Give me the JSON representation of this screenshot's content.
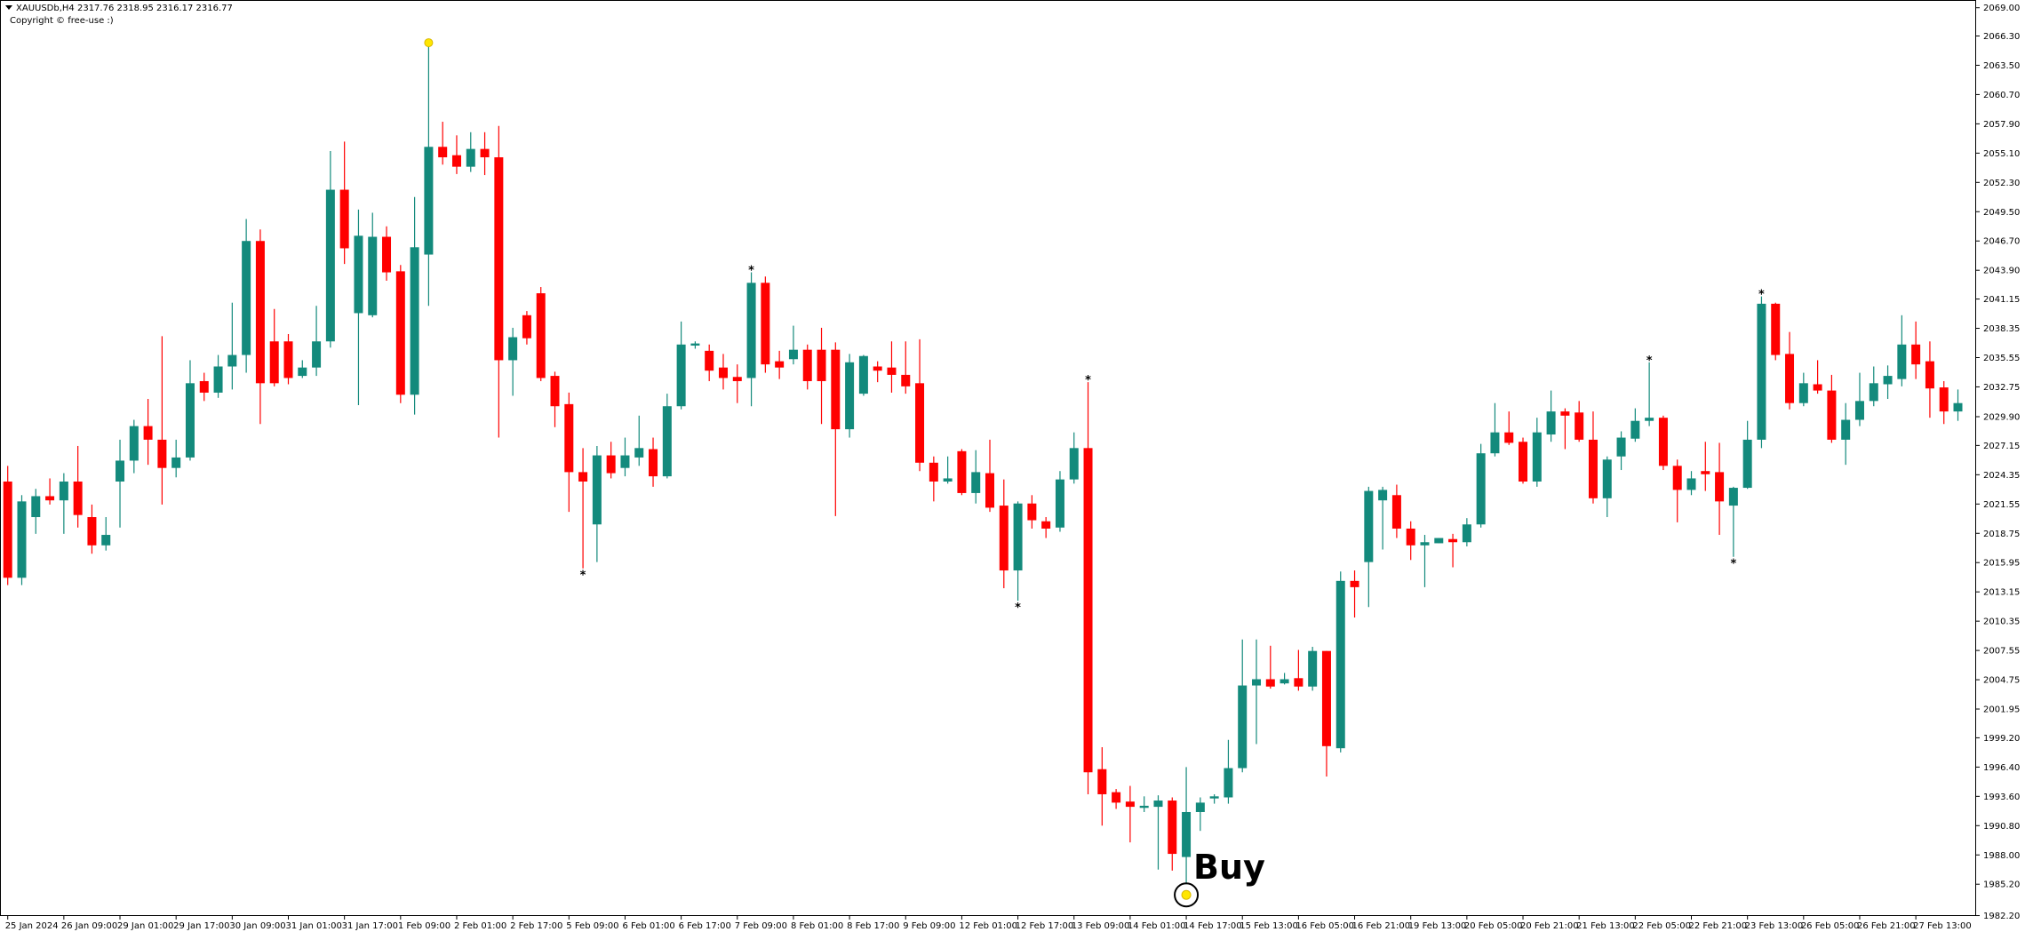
{
  "chart_data": {
    "type": "candlestick",
    "header": "XAUUSDb,H4  2317.76 2318.95 2316.17 2316.77",
    "copyright": "Copyright © free-use :)",
    "up_color": "#138a7c",
    "down_color": "#ff0000",
    "categories": [
      "25 Jan 2024",
      null,
      null,
      null,
      "26 Jan 09:00",
      null,
      null,
      null,
      "29 Jan 01:00",
      null,
      null,
      null,
      "29 Jan 17:00",
      null,
      null,
      null,
      "30 Jan 09:00",
      null,
      null,
      null,
      "31 Jan 01:00",
      null,
      null,
      null,
      "31 Jan 17:00",
      null,
      null,
      null,
      "1 Feb 09:00",
      null,
      null,
      null,
      "2 Feb 01:00",
      null,
      null,
      null,
      "2 Feb 17:00",
      null,
      null,
      null,
      "5 Feb 09:00",
      null,
      null,
      null,
      "6 Feb 01:00",
      null,
      null,
      null,
      "6 Feb 17:00",
      null,
      null,
      null,
      "7 Feb 09:00",
      null,
      null,
      null,
      "8 Feb 01:00",
      null,
      null,
      null,
      "8 Feb 17:00",
      null,
      null,
      null,
      "9 Feb 09:00",
      null,
      null,
      null,
      "12 Feb 01:00",
      null,
      null,
      null,
      "12 Feb 17:00",
      null,
      null,
      null,
      "13 Feb 09:00",
      null,
      null,
      null,
      "14 Feb 01:00",
      null,
      null,
      null,
      "14 Feb 17:00",
      null,
      null,
      null,
      "15 Feb 13:00",
      null,
      null,
      null,
      "16 Feb 05:00",
      null,
      null,
      null,
      "16 Feb 21:00",
      null,
      null,
      null,
      "19 Feb 13:00",
      null,
      null,
      null,
      "20 Feb 05:00",
      null,
      null,
      null,
      "20 Feb 21:00",
      null,
      null,
      null,
      "21 Feb 13:00",
      null,
      null,
      null,
      "22 Feb 05:00",
      null,
      null,
      null,
      "22 Feb 21:00",
      null,
      null,
      null,
      "23 Feb 13:00",
      null,
      null,
      null,
      "26 Feb 05:00",
      null,
      null,
      null,
      "26 Feb 21:00",
      null,
      null,
      null,
      "27 Feb 13:00",
      null,
      null,
      null
    ],
    "ohlc": {
      "open": [
        2023.7,
        2014.5,
        2020.3,
        2022.3,
        2021.9,
        2023.7,
        2020.3,
        2017.6,
        2023.7,
        2025.7,
        2029.0,
        2027.7,
        2025.0,
        2026.0,
        2033.3,
        2032.2,
        2034.7,
        2035.8,
        2046.7,
        2037.1,
        2037.1,
        2033.8,
        2034.6,
        2037.1,
        2051.6,
        2039.8,
        2039.6,
        2047.1,
        2043.8,
        2032.0,
        2045.4,
        2055.7,
        2054.9,
        2053.8,
        2055.5,
        2054.7,
        2035.3,
        2039.6,
        2041.7,
        2033.8,
        2031.1,
        2024.6,
        2019.6,
        2026.2,
        2025.0,
        2026.0,
        2026.8,
        2024.2,
        2030.9,
        2036.7,
        2036.2,
        2034.6,
        2033.7,
        2033.6,
        2042.7,
        2035.2,
        2035.4,
        2036.3,
        2036.3,
        2036.3,
        2028.7,
        2032.1,
        2034.7,
        2034.6,
        2033.9,
        2033.1,
        2025.5,
        2023.7,
        2026.6,
        2022.6,
        2024.5,
        2021.4,
        2015.2,
        2021.6,
        2019.9,
        2019.3,
        2023.9,
        2026.9,
        1996.2,
        1994.0,
        1993.1,
        1992.5,
        1992.6,
        1993.2,
        1987.8,
        1992.1,
        1993.4,
        1993.5,
        1996.3,
        2004.2,
        2004.8,
        2004.4,
        2004.9,
        2004.1,
        2007.5,
        1998.2,
        2014.2,
        2016.0,
        2021.9,
        2022.4,
        2019.2,
        2017.6,
        2017.8,
        2018.2,
        2017.9,
        2019.6,
        2026.4,
        2028.4,
        2027.5,
        2023.7,
        2028.2,
        2030.4,
        2030.3,
        2027.7,
        2022.1,
        2026.1,
        2027.8,
        2029.5,
        2029.8,
        2025.2,
        2022.9,
        2024.7,
        2024.6,
        2021.4,
        2023.1,
        2027.7,
        2040.7,
        2035.9,
        2031.2,
        2033.0,
        2032.4,
        2027.7,
        2029.6,
        2031.4,
        2033.0,
        2033.5,
        2036.8,
        2035.2,
        2032.7,
        2030.4
      ],
      "high": [
        2025.2,
        2022.4,
        2023.0,
        2024.0,
        2024.5,
        2027.1,
        2021.5,
        2020.3,
        2027.7,
        2029.6,
        2031.6,
        2037.6,
        2027.7,
        2035.3,
        2034.1,
        2035.8,
        2040.8,
        2048.8,
        2047.8,
        2040.2,
        2037.8,
        2035.3,
        2040.5,
        2055.3,
        2056.2,
        2049.7,
        2049.4,
        2048.1,
        2044.4,
        2050.9,
        2065.4,
        2058.1,
        2056.8,
        2057.1,
        2057.1,
        2057.7,
        2038.4,
        2040.0,
        2042.3,
        2034.2,
        2032.2,
        2026.9,
        2027.1,
        2027.5,
        2027.9,
        2030.0,
        2027.9,
        2032.1,
        2039.0,
        2037.1,
        2036.8,
        2035.9,
        2034.9,
        2043.7,
        2043.3,
        2036.2,
        2038.6,
        2036.8,
        2038.4,
        2037.0,
        2035.9,
        2035.8,
        2035.2,
        2037.1,
        2037.1,
        2037.3,
        2026.1,
        2026.1,
        2026.8,
        2026.7,
        2027.7,
        2023.9,
        2021.8,
        2022.4,
        2020.3,
        2024.7,
        2028.4,
        2033.2,
        1998.3,
        1994.3,
        1994.6,
        1993.6,
        1993.7,
        1993.5,
        1996.4,
        1993.5,
        1993.8,
        1999.0,
        2008.6,
        2008.6,
        2008.0,
        2005.4,
        2007.6,
        2007.9,
        2007.5,
        2015.1,
        2015.2,
        2023.2,
        2023.2,
        2023.4,
        2019.9,
        2018.6,
        2018.3,
        2018.7,
        2020.2,
        2027.3,
        2031.2,
        2030.4,
        2027.9,
        2029.8,
        2032.4,
        2030.7,
        2031.4,
        2030.4,
        2026.1,
        2028.5,
        2030.7,
        2035.1,
        2030.0,
        2025.8,
        2024.7,
        2027.5,
        2027.4,
        2023.2,
        2029.5,
        2041.4,
        2040.8,
        2038.0,
        2034.1,
        2035.3,
        2033.9,
        2031.2,
        2034.1,
        2034.7,
        2034.8,
        2039.6,
        2039.0,
        2037.1,
        2033.3,
        2032.5
      ],
      "low": [
        2013.8,
        2013.8,
        2018.7,
        2021.5,
        2018.7,
        2019.3,
        2016.8,
        2017.1,
        2019.3,
        2024.5,
        2025.3,
        2021.5,
        2024.1,
        2025.7,
        2031.4,
        2031.7,
        2032.5,
        2034.1,
        2029.2,
        2032.8,
        2033.0,
        2033.6,
        2033.8,
        2036.5,
        2044.5,
        2031.0,
        2039.4,
        2042.9,
        2031.2,
        2030.1,
        2040.5,
        2054.0,
        2053.1,
        2053.3,
        2053.0,
        2027.9,
        2031.9,
        2036.8,
        2033.3,
        2028.9,
        2020.8,
        2015.4,
        2016.0,
        2024.0,
        2024.2,
        2025.2,
        2023.2,
        2024.0,
        2030.6,
        2036.4,
        2033.3,
        2032.5,
        2031.2,
        2030.9,
        2034.1,
        2033.5,
        2034.9,
        2032.5,
        2029.2,
        2020.4,
        2027.9,
        2031.9,
        2033.2,
        2032.2,
        2032.1,
        2024.7,
        2021.8,
        2023.5,
        2022.4,
        2021.6,
        2020.8,
        2013.5,
        2012.3,
        2019.2,
        2018.3,
        2018.9,
        2023.5,
        1993.8,
        1990.8,
        1992.4,
        1989.2,
        1992.1,
        1986.6,
        1986.5,
        1985.2,
        1990.3,
        1992.9,
        1992.9,
        1995.9,
        1998.6,
        2003.9,
        2004.3,
        2003.7,
        2003.7,
        1995.5,
        1997.8,
        2010.7,
        2011.7,
        2017.2,
        2018.3,
        2016.2,
        2013.6,
        2017.8,
        2015.5,
        2017.5,
        2019.3,
        2026.1,
        2027.2,
        2023.5,
        2023.2,
        2027.5,
        2026.8,
        2027.5,
        2021.6,
        2020.3,
        2024.8,
        2027.5,
        2029.0,
        2024.8,
        2019.8,
        2022.4,
        2022.8,
        2018.6,
        2016.5,
        2023.0,
        2026.9,
        2035.3,
        2030.6,
        2030.9,
        2032.1,
        2027.4,
        2025.3,
        2029.0,
        2030.9,
        2031.6,
        2032.8,
        2033.5,
        2029.8,
        2029.2,
        2029.5
      ],
      "close": [
        2014.5,
        2021.8,
        2022.3,
        2021.9,
        2023.7,
        2020.5,
        2017.6,
        2018.6,
        2025.7,
        2029.0,
        2027.7,
        2025.0,
        2026.0,
        2033.1,
        2032.2,
        2034.7,
        2035.8,
        2046.7,
        2033.1,
        2033.1,
        2033.6,
        2034.6,
        2037.1,
        2051.6,
        2046.0,
        2047.2,
        2047.1,
        2043.7,
        2032.0,
        2046.1,
        2055.7,
        2054.7,
        2053.8,
        2055.5,
        2054.7,
        2035.3,
        2037.5,
        2037.4,
        2033.6,
        2030.9,
        2024.6,
        2023.7,
        2026.2,
        2024.5,
        2026.2,
        2026.9,
        2024.2,
        2030.9,
        2036.8,
        2036.9,
        2034.3,
        2033.6,
        2033.3,
        2042.7,
        2034.9,
        2034.6,
        2036.3,
        2033.3,
        2033.3,
        2028.7,
        2035.1,
        2035.7,
        2034.3,
        2033.9,
        2032.8,
        2025.5,
        2023.7,
        2024.0,
        2022.6,
        2024.6,
        2021.2,
        2015.2,
        2021.6,
        2020.0,
        2019.2,
        2023.9,
        2026.9,
        1995.9,
        1993.8,
        1993.0,
        1992.6,
        1992.7,
        1993.2,
        1988.1,
        1992.1,
        1993.0,
        1993.6,
        1996.3,
        2004.2,
        2004.8,
        2004.1,
        2004.8,
        2004.1,
        2007.5,
        1998.4,
        2014.2,
        2013.6,
        2022.8,
        2022.9,
        2019.2,
        2017.6,
        2017.9,
        2018.3,
        2017.9,
        2019.6,
        2026.4,
        2028.4,
        2027.4,
        2023.7,
        2028.4,
        2030.4,
        2030.0,
        2027.7,
        2022.1,
        2025.8,
        2027.9,
        2029.5,
        2029.8,
        2025.2,
        2022.9,
        2024.0,
        2024.4,
        2021.8,
        2023.1,
        2027.7,
        2040.7,
        2035.8,
        2031.2,
        2033.1,
        2032.4,
        2027.7,
        2029.6,
        2031.4,
        2033.1,
        2033.8,
        2036.8,
        2034.9,
        2032.6,
        2030.4,
        2031.2
      ]
    },
    "ylim": [
      1982.16,
      2069.74
    ],
    "yticks": [
      {
        "value": 2069.0,
        "label": "2069.00"
      },
      {
        "value": 2066.3,
        "label": "2066.30"
      },
      {
        "value": 2063.5,
        "label": "2063.50"
      },
      {
        "value": 2060.7,
        "label": "2060.70"
      },
      {
        "value": 2057.9,
        "label": "2057.90"
      },
      {
        "value": 2055.1,
        "label": "2055.10"
      },
      {
        "value": 2052.3,
        "label": "2052.30"
      },
      {
        "value": 2049.5,
        "label": "2049.50"
      },
      {
        "value": 2046.7,
        "label": "2046.70"
      },
      {
        "value": 2043.9,
        "label": "2043.90"
      },
      2041.15,
      2038.35,
      2035.55,
      2032.75,
      {
        "value": 2029.9,
        "label": "2029.90"
      },
      2027.15,
      2024.35,
      2021.55,
      2018.75,
      2015.95,
      2013.15,
      2010.35,
      2007.55,
      2004.75,
      2001.95,
      {
        "value": 1999.2,
        "label": "1999.20"
      },
      {
        "value": 1996.4,
        "label": "1996.40"
      },
      {
        "value": 1993.6,
        "label": "1993.60"
      },
      {
        "value": 1990.8,
        "label": "1990.80"
      },
      {
        "value": 1988.0,
        "label": "1988.00"
      },
      {
        "value": 1985.2,
        "label": "1985.20"
      },
      {
        "value": 1982.2,
        "label": "1982.20"
      }
    ],
    "grid": false,
    "swing_marks": {
      "label": "*",
      "highs": [
        53,
        77,
        117,
        125
      ],
      "lows": [
        41,
        72,
        123
      ]
    },
    "signal_dots": {
      "color": "#ffe600",
      "highs": [
        30
      ],
      "lows": [
        84
      ]
    },
    "annotation": {
      "text": "Buy",
      "candle": 84
    }
  }
}
